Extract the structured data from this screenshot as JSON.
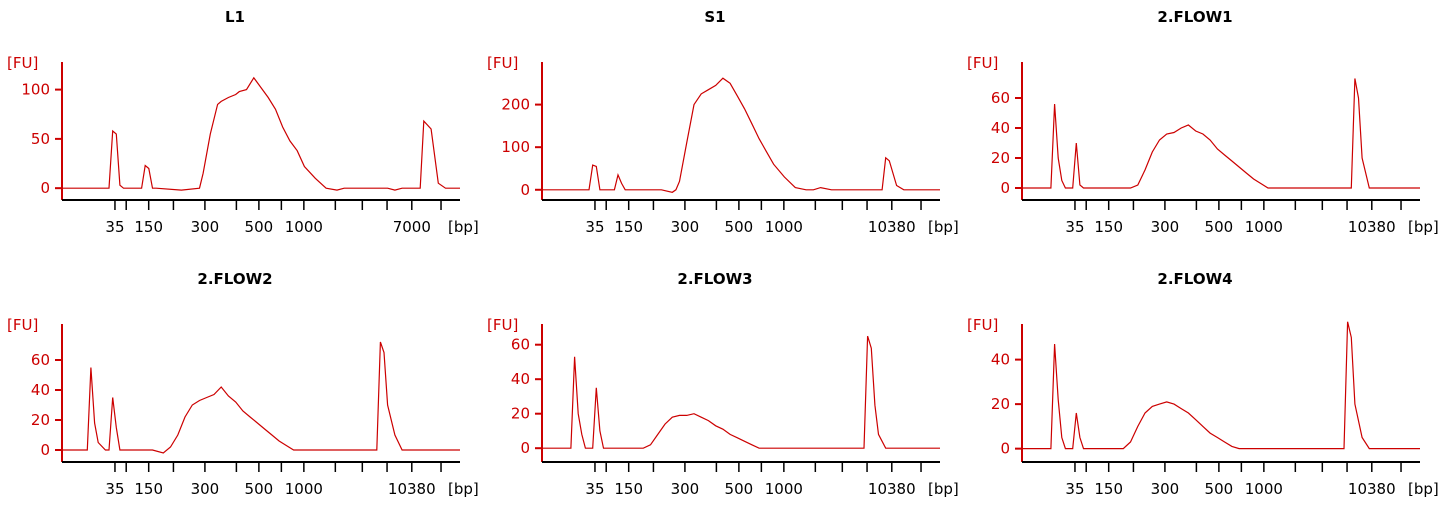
{
  "chart_data": [
    {
      "type": "line",
      "title": "L1",
      "ylabel": "[FU]",
      "xlabel": "[bp]",
      "ylim": [
        -12,
        128
      ],
      "yticks": [
        0,
        50,
        100
      ],
      "xticks": [
        "35",
        "150",
        "300",
        "500",
        "1000",
        "7000"
      ],
      "series": [
        {
          "x": [
            0,
            6,
            13,
            14,
            15,
            16,
            17,
            20,
            22,
            23,
            24,
            25,
            26,
            33,
            38,
            39,
            41,
            43,
            44,
            46,
            48,
            49,
            51,
            53,
            55,
            57,
            59,
            61,
            63,
            65,
            67,
            70,
            73,
            76,
            78,
            80,
            85,
            90,
            92,
            94,
            99,
            100,
            102,
            104,
            106,
            110
          ],
          "y": [
            0,
            0,
            0,
            58,
            55,
            3,
            0,
            0,
            0,
            23,
            20,
            0,
            0,
            -2,
            0,
            15,
            55,
            85,
            88,
            92,
            95,
            98,
            100,
            112,
            102,
            92,
            80,
            62,
            48,
            38,
            22,
            10,
            0,
            -2,
            0,
            0,
            0,
            0,
            -2,
            0,
            0,
            68,
            60,
            5,
            0,
            0
          ]
        }
      ]
    },
    {
      "type": "line",
      "title": "S1",
      "ylabel": "[FU]",
      "xlabel": "[bp]",
      "ylim": [
        -24,
        300
      ],
      "yticks": [
        0,
        100,
        200
      ],
      "xticks": [
        "35",
        "150",
        "300",
        "500",
        "1000",
        "10380"
      ],
      "series": [
        {
          "x": [
            0,
            13,
            14,
            15,
            16,
            20,
            21,
            22,
            23,
            25,
            33,
            36,
            37,
            38,
            40,
            42,
            44,
            46,
            48,
            50,
            52,
            54,
            56,
            58,
            60,
            62,
            64,
            67,
            70,
            73,
            75,
            77,
            80,
            85,
            93,
            94,
            95,
            96,
            98,
            100,
            110
          ],
          "y": [
            0,
            0,
            58,
            55,
            0,
            0,
            35,
            15,
            0,
            0,
            0,
            -6,
            0,
            20,
            110,
            200,
            225,
            235,
            245,
            262,
            250,
            220,
            190,
            155,
            120,
            90,
            60,
            30,
            5,
            0,
            0,
            5,
            0,
            0,
            0,
            0,
            75,
            68,
            10,
            0,
            0
          ]
        }
      ]
    },
    {
      "type": "line",
      "title": "2.FLOW1",
      "ylabel": "[FU]",
      "xlabel": "[bp]",
      "ylim": [
        -8,
        84
      ],
      "yticks": [
        0,
        20,
        40,
        60
      ],
      "xticks": [
        "35",
        "150",
        "300",
        "500",
        "1000",
        "10380"
      ],
      "series": [
        {
          "x": [
            0,
            8,
            9,
            10,
            11,
            12,
            14,
            15,
            16,
            17,
            25,
            30,
            32,
            34,
            36,
            38,
            40,
            42,
            44,
            46,
            48,
            50,
            52,
            54,
            56,
            58,
            60,
            62,
            64,
            66,
            68,
            70,
            90,
            91,
            92,
            93,
            94,
            96,
            98,
            100,
            110
          ],
          "y": [
            0,
            0,
            56,
            20,
            5,
            0,
            0,
            30,
            2,
            0,
            0,
            0,
            2,
            12,
            24,
            32,
            36,
            37,
            40,
            42,
            38,
            36,
            32,
            26,
            22,
            18,
            14,
            10,
            6,
            3,
            0,
            0,
            0,
            0,
            73,
            60,
            20,
            0,
            0,
            0,
            0
          ]
        }
      ]
    },
    {
      "type": "line",
      "title": "2.FLOW2",
      "ylabel": "[FU]",
      "xlabel": "[bp]",
      "ylim": [
        -8,
        84
      ],
      "yticks": [
        0,
        20,
        40,
        60
      ],
      "xticks": [
        "35",
        "150",
        "300",
        "500",
        "1000",
        "10380"
      ],
      "series": [
        {
          "x": [
            0,
            7,
            8,
            9,
            10,
            12,
            13,
            14,
            15,
            16,
            20,
            25,
            28,
            30,
            32,
            34,
            36,
            38,
            40,
            42,
            44,
            46,
            48,
            50,
            52,
            54,
            56,
            58,
            60,
            62,
            64,
            66,
            70,
            85,
            87,
            88,
            89,
            90,
            92,
            94,
            96,
            100,
            110
          ],
          "y": [
            0,
            0,
            55,
            18,
            5,
            0,
            0,
            35,
            15,
            0,
            0,
            0,
            -2,
            2,
            10,
            22,
            30,
            33,
            35,
            37,
            42,
            36,
            32,
            26,
            22,
            18,
            14,
            10,
            6,
            3,
            0,
            0,
            0,
            0,
            0,
            72,
            65,
            30,
            10,
            0,
            0,
            0,
            0
          ]
        }
      ]
    },
    {
      "type": "line",
      "title": "2.FLOW3",
      "ylabel": "[FU]",
      "xlabel": "[bp]",
      "ylim": [
        -8,
        72
      ],
      "yticks": [
        0,
        20,
        40,
        60
      ],
      "xticks": [
        "35",
        "150",
        "300",
        "500",
        "1000",
        "10380"
      ],
      "series": [
        {
          "x": [
            0,
            8,
            9,
            10,
            11,
            12,
            14,
            15,
            16,
            17,
            25,
            28,
            30,
            32,
            34,
            36,
            38,
            40,
            42,
            44,
            46,
            48,
            50,
            52,
            54,
            56,
            58,
            60,
            62,
            64,
            66,
            70,
            88,
            89,
            90,
            91,
            92,
            93,
            95,
            97,
            100,
            110
          ],
          "y": [
            0,
            0,
            53,
            20,
            8,
            0,
            0,
            35,
            10,
            0,
            0,
            0,
            2,
            8,
            14,
            18,
            19,
            19,
            20,
            18,
            16,
            13,
            11,
            8,
            6,
            4,
            2,
            0,
            0,
            0,
            0,
            0,
            0,
            0,
            65,
            58,
            25,
            8,
            0,
            0,
            0,
            0
          ]
        }
      ]
    },
    {
      "type": "line",
      "title": "2.FLOW4",
      "ylabel": "[FU]",
      "xlabel": "[bp]",
      "ylim": [
        -6,
        56
      ],
      "yticks": [
        0,
        20,
        40
      ],
      "xticks": [
        "35",
        "150",
        "300",
        "500",
        "1000",
        "10380"
      ],
      "series": [
        {
          "x": [
            0,
            8,
            9,
            10,
            11,
            12,
            14,
            15,
            16,
            17,
            25,
            28,
            30,
            32,
            34,
            36,
            38,
            40,
            42,
            44,
            46,
            48,
            50,
            52,
            54,
            56,
            58,
            60,
            62,
            64,
            66,
            70,
            88,
            89,
            90,
            91,
            92,
            94,
            96,
            100,
            110
          ],
          "y": [
            0,
            0,
            47,
            22,
            5,
            0,
            0,
            16,
            5,
            0,
            0,
            0,
            3,
            10,
            16,
            19,
            20,
            21,
            20,
            18,
            16,
            13,
            10,
            7,
            5,
            3,
            1,
            0,
            0,
            0,
            0,
            0,
            0,
            0,
            57,
            50,
            20,
            5,
            0,
            0,
            0
          ]
        }
      ]
    }
  ],
  "colors": {
    "axis": "#cc0000",
    "trace": "#cc0000",
    "tick_text": "#000000"
  }
}
